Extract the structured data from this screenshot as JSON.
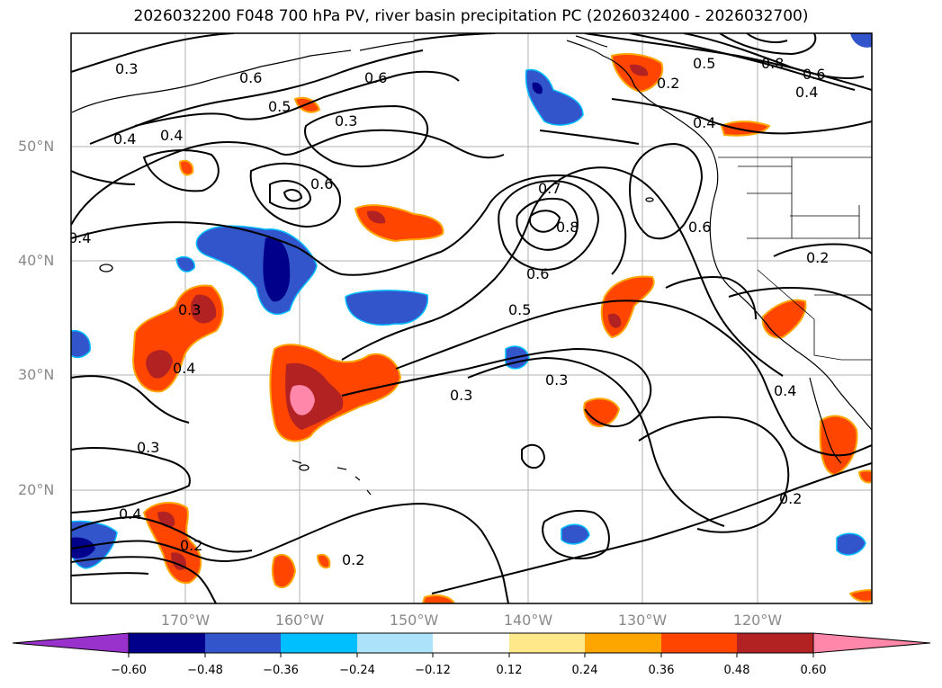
{
  "title": "2026032200 F048 700 hPa PV, river basin precipitation PC (2026032400 - 2026032700)",
  "lat_labels": [
    "50°N",
    "40°N",
    "30°N",
    "20°N"
  ],
  "lon_labels": [
    "170°W",
    "160°W",
    "150°W",
    "140°W",
    "130°W",
    "120°W"
  ],
  "colorbar": {
    "ticks": [
      "−0.60",
      "−0.48",
      "−0.36",
      "−0.24",
      "−0.12",
      "0.12",
      "0.24",
      "0.36",
      "0.48",
      "0.60"
    ],
    "colors": [
      "#9932CC",
      "#00008B",
      "#3355CC",
      "#00BFFF",
      "#ADE3FA",
      "#FFFFFF",
      "#FFE88C",
      "#FFA500",
      "#FF4500",
      "#B22222",
      "#FF88AA"
    ]
  },
  "contour_labels": [
    "0.3",
    "0.6",
    "0.6",
    "0.5",
    "0.3",
    "0.4",
    "0.4",
    "0.5",
    "0.8",
    "0.6",
    "0.4",
    "0.2",
    "0.4",
    "0.6",
    "0.7",
    "0.8",
    "0.6",
    "0.6",
    "0.5",
    "0.3",
    "0.4",
    "0.4",
    "0.3",
    "0.3",
    "0.3",
    "0.4",
    "0.2",
    "0.2",
    "0.2",
    "0.2",
    "0.4"
  ]
}
